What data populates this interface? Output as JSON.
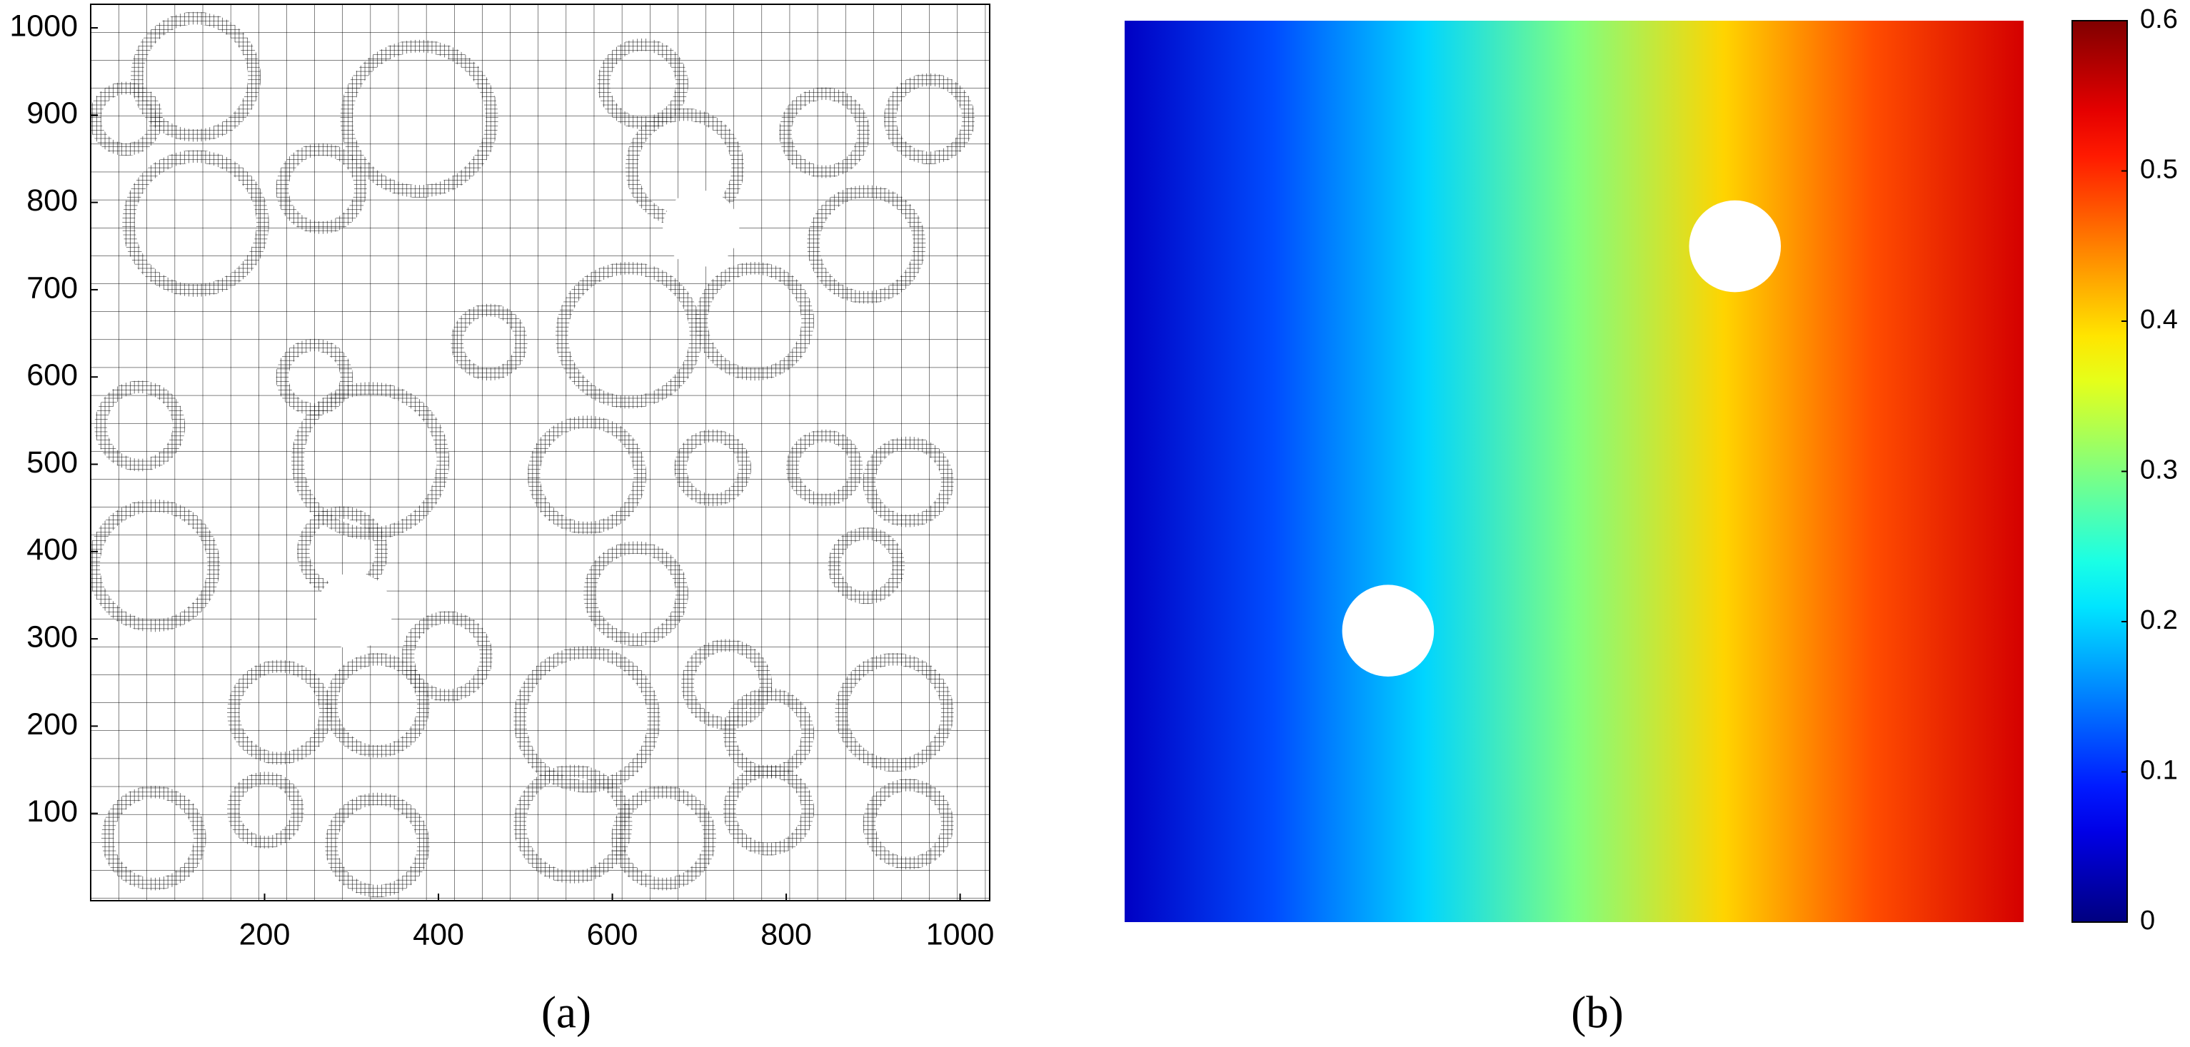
{
  "chart_data": [
    {
      "type": "mesh",
      "caption": "(a)",
      "xlim": [
        0,
        1034
      ],
      "ylim": [
        0,
        1027
      ],
      "xticks": [
        200,
        400,
        600,
        800,
        1000
      ],
      "yticks": [
        100,
        200,
        300,
        400,
        500,
        600,
        700,
        800,
        900,
        1000
      ],
      "holes": {
        "x": [
          303,
          702
        ],
        "y": [
          332,
          770
        ]
      },
      "hole_radius": 44
    },
    {
      "type": "heatmap",
      "caption": "(b)",
      "colormap": "jet",
      "values": [
        0.04,
        0.12,
        0.2,
        0.3,
        0.4,
        0.48,
        0.55
      ],
      "clim": [
        0,
        0.6
      ],
      "cticks": [
        0,
        0.1,
        0.2,
        0.3,
        0.4,
        0.5,
        0.6
      ]
    }
  ]
}
